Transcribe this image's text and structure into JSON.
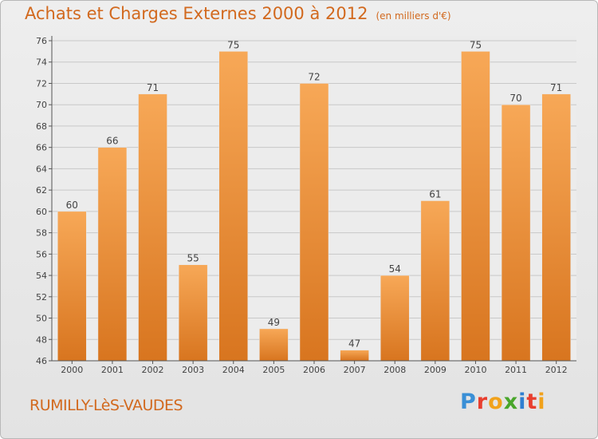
{
  "header": {
    "title": "Achats et Charges Externes 2000 à 2012",
    "unit": "(en milliers d'€)"
  },
  "footer": {
    "place": "RUMILLY-LèS-VAUDES",
    "brand_letters": [
      "P",
      "r",
      "o",
      "x",
      "i",
      "t",
      "i"
    ],
    "brand_colors": [
      "#3a8fd6",
      "#e83e2e",
      "#f1a21b",
      "#49a62b",
      "#2f7fd1",
      "#e83e2e",
      "#f1a21b"
    ]
  },
  "colors": {
    "bar_light": "#f7a857",
    "bar_dark": "#d8751f",
    "title": "#d2691e",
    "grid": "#c8c8c8",
    "axis": "#555555"
  },
  "chart_data": {
    "type": "bar",
    "title": "Achats et Charges Externes 2000 à 2012",
    "categories": [
      "2000",
      "2001",
      "2002",
      "2003",
      "2004",
      "2005",
      "2006",
      "2007",
      "2008",
      "2009",
      "2010",
      "2011",
      "2012"
    ],
    "values": [
      60,
      66,
      71,
      55,
      75,
      49,
      72,
      47,
      54,
      61,
      75,
      70,
      71
    ],
    "ylim": [
      46,
      76
    ],
    "yticks": [
      46,
      48,
      50,
      52,
      54,
      56,
      58,
      60,
      62,
      64,
      66,
      68,
      70,
      72,
      74,
      76
    ],
    "xlabel": "",
    "ylabel": "",
    "grid": true,
    "data_labels": true
  }
}
